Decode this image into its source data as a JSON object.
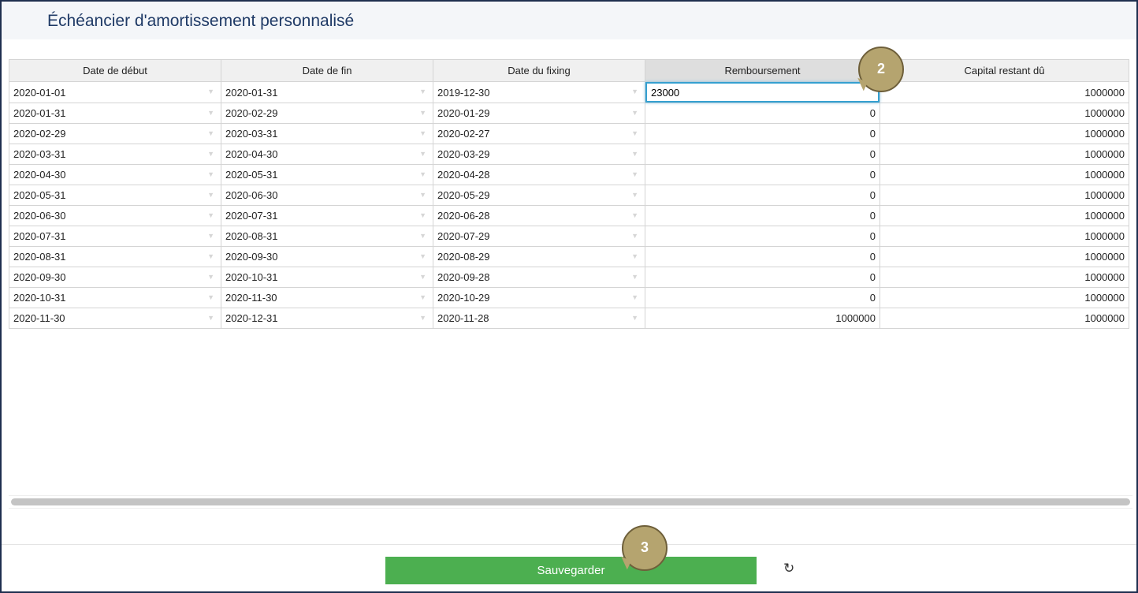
{
  "title": "Échéancier d'amortissement personnalisé",
  "columns": [
    "Date de début",
    "Date de fin",
    "Date du fixing",
    "Remboursement",
    "Capital restant dû"
  ],
  "rows": [
    [
      "2020-01-01",
      "2020-01-31",
      "2019-12-30",
      "23000",
      "1000000"
    ],
    [
      "2020-01-31",
      "2020-02-29",
      "2020-01-29",
      "0",
      "1000000"
    ],
    [
      "2020-02-29",
      "2020-03-31",
      "2020-02-27",
      "0",
      "1000000"
    ],
    [
      "2020-03-31",
      "2020-04-30",
      "2020-03-29",
      "0",
      "1000000"
    ],
    [
      "2020-04-30",
      "2020-05-31",
      "2020-04-28",
      "0",
      "1000000"
    ],
    [
      "2020-05-31",
      "2020-06-30",
      "2020-05-29",
      "0",
      "1000000"
    ],
    [
      "2020-06-30",
      "2020-07-31",
      "2020-06-28",
      "0",
      "1000000"
    ],
    [
      "2020-07-31",
      "2020-08-31",
      "2020-07-29",
      "0",
      "1000000"
    ],
    [
      "2020-08-31",
      "2020-09-30",
      "2020-08-29",
      "0",
      "1000000"
    ],
    [
      "2020-09-30",
      "2020-10-31",
      "2020-09-28",
      "0",
      "1000000"
    ],
    [
      "2020-10-31",
      "2020-11-30",
      "2020-10-29",
      "0",
      "1000000"
    ],
    [
      "2020-11-30",
      "2020-12-31",
      "2020-11-28",
      "1000000",
      "1000000"
    ]
  ],
  "save_label": "Sauvegarder",
  "refresh_icon": "refresh-icon",
  "callouts": [
    "2",
    "3"
  ],
  "colors": {
    "accent": "#4caf50",
    "title": "#1f3a66",
    "callout": "#b5a46f"
  }
}
